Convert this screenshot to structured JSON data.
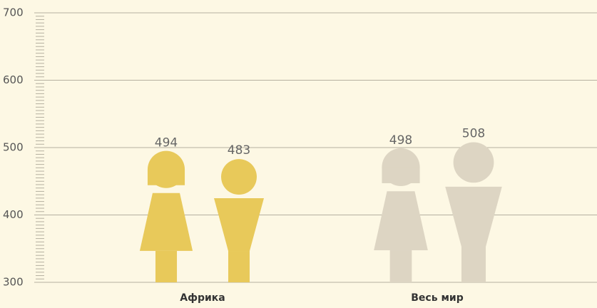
{
  "chart_data": {
    "type": "pictogram",
    "categories": [
      "Африка",
      "Весь мир"
    ],
    "colors": [
      "#e8c95a",
      "#ddd5c3"
    ],
    "series": [
      {
        "values": [
          494,
          498
        ]
      },
      {
        "values": [
          483,
          508
        ]
      }
    ],
    "ylim": [
      300,
      700
    ],
    "yticks": [
      300,
      400,
      500,
      600,
      700
    ],
    "grid": true
  }
}
